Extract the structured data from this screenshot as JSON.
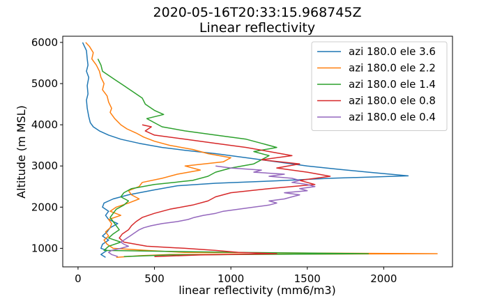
{
  "chart_data": {
    "type": "line",
    "title": "2020-05-16T20:33:15.968745Z",
    "subtitle": "Linear reflectivity",
    "xlabel": "linear reflectivity (mm6/m3)",
    "ylabel": "Altitude (m MSL)",
    "xlim": [
      -100,
      2450
    ],
    "ylim": [
      550,
      6150
    ],
    "xticks": [
      0,
      500,
      1000,
      1500,
      2000
    ],
    "yticks": [
      1000,
      2000,
      3000,
      4000,
      5000,
      6000
    ],
    "xtick_labels": [
      "0",
      "500",
      "1000",
      "1500",
      "2000"
    ],
    "ytick_labels": [
      "1000",
      "2000",
      "3000",
      "4000",
      "5000",
      "6000"
    ],
    "legend_position": "top-right",
    "grid": false,
    "series": [
      {
        "name": "azi 180.0 ele 3.6",
        "color": "#1f77b4",
        "points": [
          [
            30,
            6000
          ],
          [
            55,
            5800
          ],
          [
            60,
            5600
          ],
          [
            65,
            5450
          ],
          [
            55,
            5300
          ],
          [
            70,
            5150
          ],
          [
            60,
            4950
          ],
          [
            65,
            4750
          ],
          [
            55,
            4600
          ],
          [
            60,
            4400
          ],
          [
            70,
            4200
          ],
          [
            80,
            4050
          ],
          [
            100,
            3950
          ],
          [
            140,
            3850
          ],
          [
            200,
            3750
          ],
          [
            280,
            3650
          ],
          [
            400,
            3550
          ],
          [
            550,
            3450
          ],
          [
            700,
            3380
          ],
          [
            900,
            3300
          ],
          [
            1100,
            3200
          ],
          [
            1300,
            3100
          ],
          [
            1500,
            3000
          ],
          [
            1700,
            2920
          ],
          [
            1900,
            2850
          ],
          [
            2160,
            2760
          ],
          [
            1650,
            2700
          ],
          [
            1300,
            2640
          ],
          [
            900,
            2580
          ],
          [
            650,
            2520
          ],
          [
            500,
            2420
          ],
          [
            330,
            2300
          ],
          [
            230,
            2200
          ],
          [
            170,
            2100
          ],
          [
            160,
            2000
          ],
          [
            200,
            1900
          ],
          [
            180,
            1800
          ],
          [
            200,
            1700
          ],
          [
            260,
            1600
          ],
          [
            210,
            1500
          ],
          [
            190,
            1400
          ],
          [
            160,
            1300
          ],
          [
            200,
            1200
          ],
          [
            160,
            1100
          ],
          [
            150,
            1000
          ],
          [
            190,
            950
          ],
          [
            170,
            900
          ],
          [
            150,
            850
          ],
          [
            180,
            780
          ]
        ]
      },
      {
        "name": "azi 180.0 ele 2.2",
        "color": "#ff7f0e",
        "points": [
          [
            50,
            6000
          ],
          [
            75,
            5900
          ],
          [
            100,
            5750
          ],
          [
            90,
            5600
          ],
          [
            120,
            5450
          ],
          [
            140,
            5300
          ],
          [
            150,
            5150
          ],
          [
            170,
            5000
          ],
          [
            160,
            4850
          ],
          [
            190,
            4700
          ],
          [
            200,
            4550
          ],
          [
            220,
            4400
          ],
          [
            210,
            4300
          ],
          [
            240,
            4150
          ],
          [
            280,
            4000
          ],
          [
            320,
            3900
          ],
          [
            380,
            3800
          ],
          [
            430,
            3700
          ],
          [
            500,
            3600
          ],
          [
            600,
            3500
          ],
          [
            750,
            3400
          ],
          [
            850,
            3300
          ],
          [
            1000,
            3200
          ],
          [
            950,
            3100
          ],
          [
            700,
            3000
          ],
          [
            800,
            2900
          ],
          [
            650,
            2800
          ],
          [
            550,
            2700
          ],
          [
            420,
            2600
          ],
          [
            400,
            2500
          ],
          [
            330,
            2400
          ],
          [
            350,
            2300
          ],
          [
            400,
            2200
          ],
          [
            330,
            2100
          ],
          [
            250,
            2000
          ],
          [
            210,
            1900
          ],
          [
            280,
            1800
          ],
          [
            200,
            1700
          ],
          [
            220,
            1600
          ],
          [
            210,
            1500
          ],
          [
            180,
            1400
          ],
          [
            200,
            1300
          ],
          [
            170,
            1200
          ],
          [
            190,
            1100
          ],
          [
            230,
            1000
          ],
          [
            450,
            950
          ],
          [
            700,
            900
          ],
          [
            2350,
            870
          ],
          [
            600,
            850
          ],
          [
            400,
            820
          ],
          [
            250,
            780
          ]
        ]
      },
      {
        "name": "azi 180.0 ele 1.4",
        "color": "#2ca02c",
        "points": [
          [
            130,
            5600
          ],
          [
            150,
            5450
          ],
          [
            160,
            5300
          ],
          [
            240,
            5100
          ],
          [
            300,
            4950
          ],
          [
            360,
            4800
          ],
          [
            420,
            4650
          ],
          [
            440,
            4500
          ],
          [
            500,
            4350
          ],
          [
            560,
            4250
          ],
          [
            450,
            4150
          ],
          [
            500,
            4050
          ],
          [
            550,
            3950
          ],
          [
            700,
            3850
          ],
          [
            900,
            3750
          ],
          [
            1100,
            3650
          ],
          [
            1200,
            3550
          ],
          [
            1300,
            3450
          ],
          [
            1150,
            3350
          ],
          [
            1250,
            3250
          ],
          [
            1200,
            3150
          ],
          [
            1150,
            3050
          ],
          [
            1000,
            2950
          ],
          [
            900,
            2850
          ],
          [
            850,
            2750
          ],
          [
            750,
            2650
          ],
          [
            500,
            2550
          ],
          [
            350,
            2450
          ],
          [
            300,
            2350
          ],
          [
            280,
            2250
          ],
          [
            330,
            2150
          ],
          [
            300,
            2050
          ],
          [
            250,
            1950
          ],
          [
            230,
            1850
          ],
          [
            210,
            1750
          ],
          [
            230,
            1650
          ],
          [
            250,
            1550
          ],
          [
            270,
            1450
          ],
          [
            230,
            1350
          ],
          [
            200,
            1250
          ],
          [
            280,
            1150
          ],
          [
            200,
            1050
          ],
          [
            170,
            950
          ],
          [
            1050,
            900
          ],
          [
            1900,
            870
          ],
          [
            600,
            840
          ],
          [
            300,
            800
          ]
        ]
      },
      {
        "name": "azi 180.0 ele 0.8",
        "color": "#d62728",
        "points": [
          [
            420,
            4000
          ],
          [
            480,
            3950
          ],
          [
            440,
            3850
          ],
          [
            500,
            3750
          ],
          [
            700,
            3650
          ],
          [
            900,
            3550
          ],
          [
            1100,
            3450
          ],
          [
            1250,
            3350
          ],
          [
            1400,
            3250
          ],
          [
            1200,
            3150
          ],
          [
            1450,
            3050
          ],
          [
            1300,
            2950
          ],
          [
            1500,
            2850
          ],
          [
            1650,
            2750
          ],
          [
            1450,
            2650
          ],
          [
            1550,
            2550
          ],
          [
            1250,
            2450
          ],
          [
            1000,
            2350
          ],
          [
            900,
            2250
          ],
          [
            850,
            2150
          ],
          [
            750,
            2050
          ],
          [
            600,
            1950
          ],
          [
            500,
            1850
          ],
          [
            420,
            1750
          ],
          [
            380,
            1650
          ],
          [
            350,
            1550
          ],
          [
            330,
            1450
          ],
          [
            290,
            1350
          ],
          [
            270,
            1250
          ],
          [
            300,
            1150
          ],
          [
            450,
            1050
          ],
          [
            700,
            1000
          ],
          [
            900,
            950
          ],
          [
            1050,
            900
          ],
          [
            1300,
            870
          ],
          [
            800,
            840
          ],
          [
            500,
            800
          ]
        ]
      },
      {
        "name": "azi 180.0 ele 0.4",
        "color": "#9467bd",
        "points": [
          [
            900,
            3000
          ],
          [
            1000,
            2950
          ],
          [
            1200,
            2900
          ],
          [
            1150,
            2850
          ],
          [
            1350,
            2800
          ],
          [
            1250,
            2750
          ],
          [
            1400,
            2700
          ],
          [
            1450,
            2650
          ],
          [
            1400,
            2600
          ],
          [
            1500,
            2550
          ],
          [
            1550,
            2500
          ],
          [
            1450,
            2450
          ],
          [
            1500,
            2400
          ],
          [
            1350,
            2350
          ],
          [
            1450,
            2300
          ],
          [
            1400,
            2250
          ],
          [
            1350,
            2200
          ],
          [
            1250,
            2150
          ],
          [
            1300,
            2100
          ],
          [
            1250,
            2050
          ],
          [
            1150,
            2000
          ],
          [
            1050,
            1950
          ],
          [
            950,
            1900
          ],
          [
            900,
            1850
          ],
          [
            820,
            1800
          ],
          [
            760,
            1750
          ],
          [
            720,
            1700
          ],
          [
            650,
            1650
          ],
          [
            550,
            1600
          ],
          [
            480,
            1550
          ],
          [
            430,
            1500
          ],
          [
            400,
            1450
          ],
          [
            380,
            1400
          ],
          [
            360,
            1350
          ],
          [
            340,
            1300
          ],
          [
            320,
            1250
          ],
          [
            300,
            1200
          ],
          [
            280,
            1150
          ],
          [
            300,
            1100
          ],
          [
            330,
            1050
          ],
          [
            280,
            1000
          ],
          [
            220,
            950
          ],
          [
            200,
            900
          ],
          [
            220,
            850
          ],
          [
            260,
            800
          ]
        ]
      }
    ]
  }
}
